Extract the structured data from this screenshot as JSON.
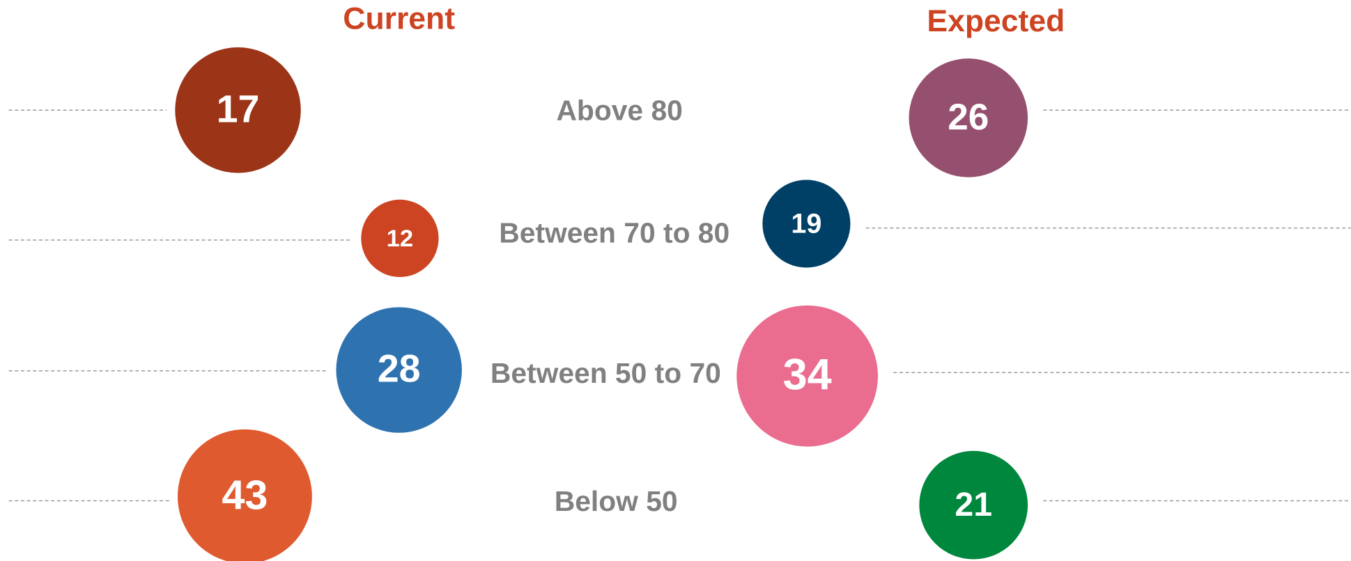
{
  "columns": [
    {
      "title": "Current",
      "values": [
        17,
        12,
        28,
        43
      ]
    },
    {
      "title": "Expected",
      "values": [
        26,
        19,
        34,
        21
      ]
    }
  ],
  "rows": [
    "Above 80",
    "Between 70 to 80",
    "Between 50 to 70",
    "Below 50"
  ]
}
